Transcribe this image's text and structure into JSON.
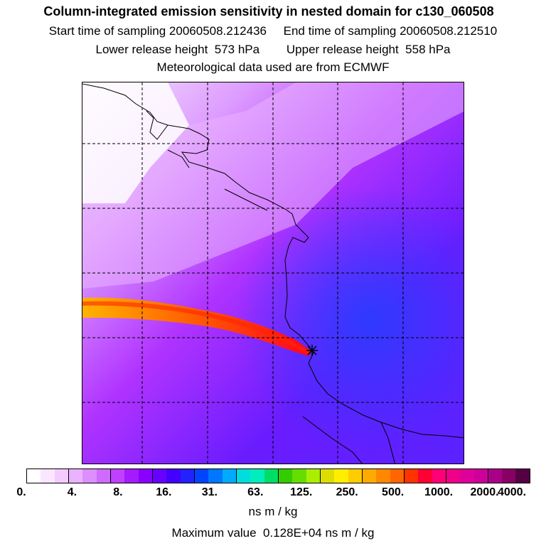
{
  "header": {
    "title": "Column-integrated emission sensitivity in nested domain for c130_060508",
    "line1": "Start time of sampling 20060508.212436     End time of sampling 20060508.212510",
    "line2": "Lower release height  573 hPa        Upper release height  558 hPa",
    "line3": "Meteorological data used are from ECMWF"
  },
  "map": {
    "description_name": "emission-sensitivity-map",
    "receptor_marker": "star-marker",
    "plume_colors": [
      "#ff2600",
      "#ff8a00",
      "#ffe500"
    ],
    "background_colors": [
      "#e5b6ff",
      "#b533ff",
      "#7a1fff",
      "#2b3cff"
    ]
  },
  "colorbar": {
    "colors": [
      "#ffffff",
      "#fbe6ff",
      "#f3cbff",
      "#eab3ff",
      "#dd8eff",
      "#cf6bff",
      "#bf40ff",
      "#a61aff",
      "#8a00ff",
      "#6800ff",
      "#4400ff",
      "#2222ff",
      "#0044ff",
      "#0077ff",
      "#00aaff",
      "#00dddd",
      "#00eebb",
      "#00dd66",
      "#33cc00",
      "#66dd00",
      "#aaee00",
      "#dddd00",
      "#ffee00",
      "#ffcc00",
      "#ffaa00",
      "#ff8800",
      "#ff6600",
      "#ff3300",
      "#ff0033",
      "#ff0077",
      "#ee0088",
      "#dd0099",
      "#cc0099",
      "#aa0088",
      "#880066",
      "#550044"
    ],
    "ticks": [
      "0.",
      "4.",
      "8.",
      "16.",
      "31.",
      "63.",
      "125.",
      "250.",
      "500.",
      "1000.",
      "2000.",
      "4000."
    ],
    "units": "ns m / kg"
  },
  "footer": {
    "max_value": "Maximum value  0.128E+04 ns m / kg"
  }
}
